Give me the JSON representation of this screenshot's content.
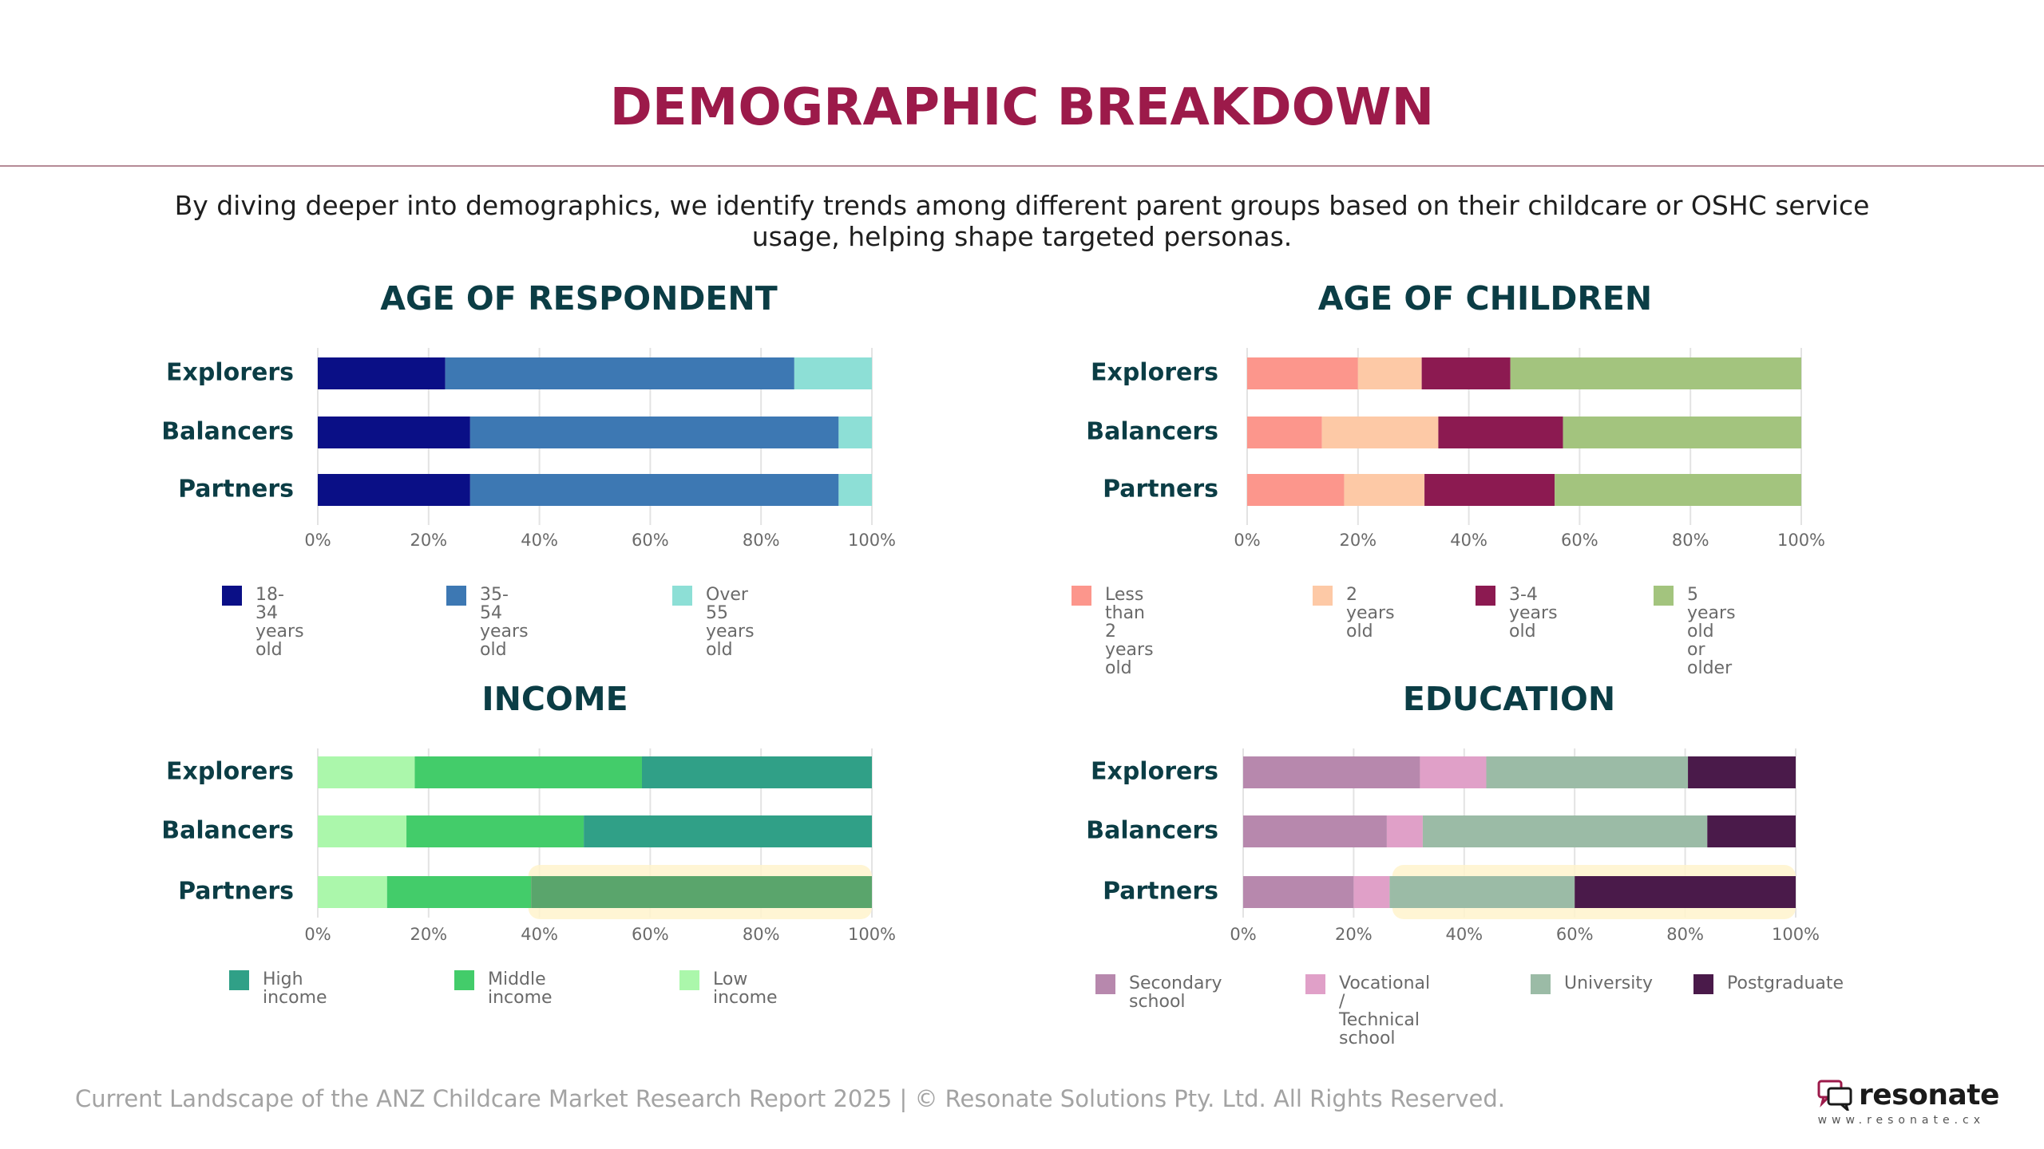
{
  "page": {
    "title": "DEMOGRAPHIC BREAKDOWN",
    "intro": "By diving deeper into demographics, we identify trends among different parent groups based on their childcare or OSHC service usage, helping shape targeted personas.",
    "footer": "Current Landscape of the ANZ Childcare Market Research Report 2025 | © Resonate Solutions Pty. Ltd. All Rights Reserved.",
    "logo_name": "resonate",
    "logo_url": "www.resonate.cx",
    "logo_icon": "chat-bubbles-icon"
  },
  "chart_data": [
    {
      "id": "age-respondent",
      "type": "bar",
      "orientation": "horizontal",
      "stacked": true,
      "title": "AGE OF RESPONDENT",
      "categories": [
        "Explorers",
        "Balancers",
        "Partners"
      ],
      "xlim": [
        0,
        100
      ],
      "x_ticks": [
        "0%",
        "20%",
        "40%",
        "60%",
        "80%",
        "100%"
      ],
      "grid": true,
      "legend_position": "bottom",
      "series": [
        {
          "name": "18-34 years old",
          "color": "#0a0f86",
          "values": [
            23,
            27.5,
            27.5
          ]
        },
        {
          "name": "35-54 years old",
          "color": "#3d78b3",
          "values": [
            63,
            66.5,
            66.5
          ]
        },
        {
          "name": "Over 55 years old",
          "color": "#8ddfd6",
          "values": [
            14,
            6,
            6
          ]
        }
      ]
    },
    {
      "id": "age-children",
      "type": "bar",
      "orientation": "horizontal",
      "stacked": true,
      "title": "AGE OF CHILDREN",
      "categories": [
        "Explorers",
        "Balancers",
        "Partners"
      ],
      "xlim": [
        0,
        100
      ],
      "x_ticks": [
        "0%",
        "20%",
        "40%",
        "60%",
        "80%",
        "100%"
      ],
      "grid": true,
      "legend_position": "bottom",
      "series": [
        {
          "name": "Less than 2 years old",
          "color": "#fc968c",
          "values": [
            20,
            13.5,
            17.5
          ]
        },
        {
          "name": "2 years old",
          "color": "#fdc9a6",
          "values": [
            11.5,
            21,
            14.5
          ]
        },
        {
          "name": "3-4 years old",
          "color": "#8c1a51",
          "values": [
            16,
            22.5,
            23.5
          ]
        },
        {
          "name": "5 years old or older",
          "color": "#a3c47e",
          "values": [
            52.5,
            43,
            44.5
          ]
        }
      ]
    },
    {
      "id": "income",
      "type": "bar",
      "orientation": "horizontal",
      "stacked": true,
      "title": "INCOME",
      "categories": [
        "Explorers",
        "Balancers",
        "Partners"
      ],
      "xlim": [
        0,
        100
      ],
      "x_ticks": [
        "0%",
        "20%",
        "40%",
        "60%",
        "80%",
        "100%"
      ],
      "grid": true,
      "legend_position": "bottom",
      "highlight": {
        "category": "Partners",
        "from": 38,
        "to": 100
      },
      "series": [
        {
          "name": "Low income",
          "color": "#abf7ab",
          "values": [
            17.5,
            16,
            12.5
          ]
        },
        {
          "name": "Middle income",
          "color": "#43cc6a",
          "values": [
            41,
            32,
            26
          ]
        },
        {
          "name": "High income",
          "color": "#30a087",
          "values": [
            41.5,
            52,
            61.5
          ],
          "partners_color": "#5aa56c"
        }
      ],
      "legend_order": [
        "High income",
        "Middle income",
        "Low income"
      ]
    },
    {
      "id": "education",
      "type": "bar",
      "orientation": "horizontal",
      "stacked": true,
      "title": "EDUCATION",
      "categories": [
        "Explorers",
        "Balancers",
        "Partners"
      ],
      "xlim": [
        0,
        100
      ],
      "x_ticks": [
        "0%",
        "20%",
        "40%",
        "60%",
        "80%",
        "100%"
      ],
      "grid": true,
      "legend_position": "bottom",
      "highlight": {
        "category": "Partners",
        "from": 27,
        "to": 100
      },
      "series": [
        {
          "name": "Secondary school",
          "color": "#b788ad",
          "values": [
            32,
            26,
            20
          ]
        },
        {
          "name": "Vocational /\nTechnical school",
          "color": "#e0a0c8",
          "values": [
            12,
            6.5,
            6.5
          ]
        },
        {
          "name": "University",
          "color": "#9bbba6",
          "values": [
            36.5,
            51.5,
            33.5
          ]
        },
        {
          "name": "Postgraduate",
          "color": "#4a1a4a",
          "values": [
            19.5,
            16,
            40
          ]
        }
      ]
    }
  ]
}
